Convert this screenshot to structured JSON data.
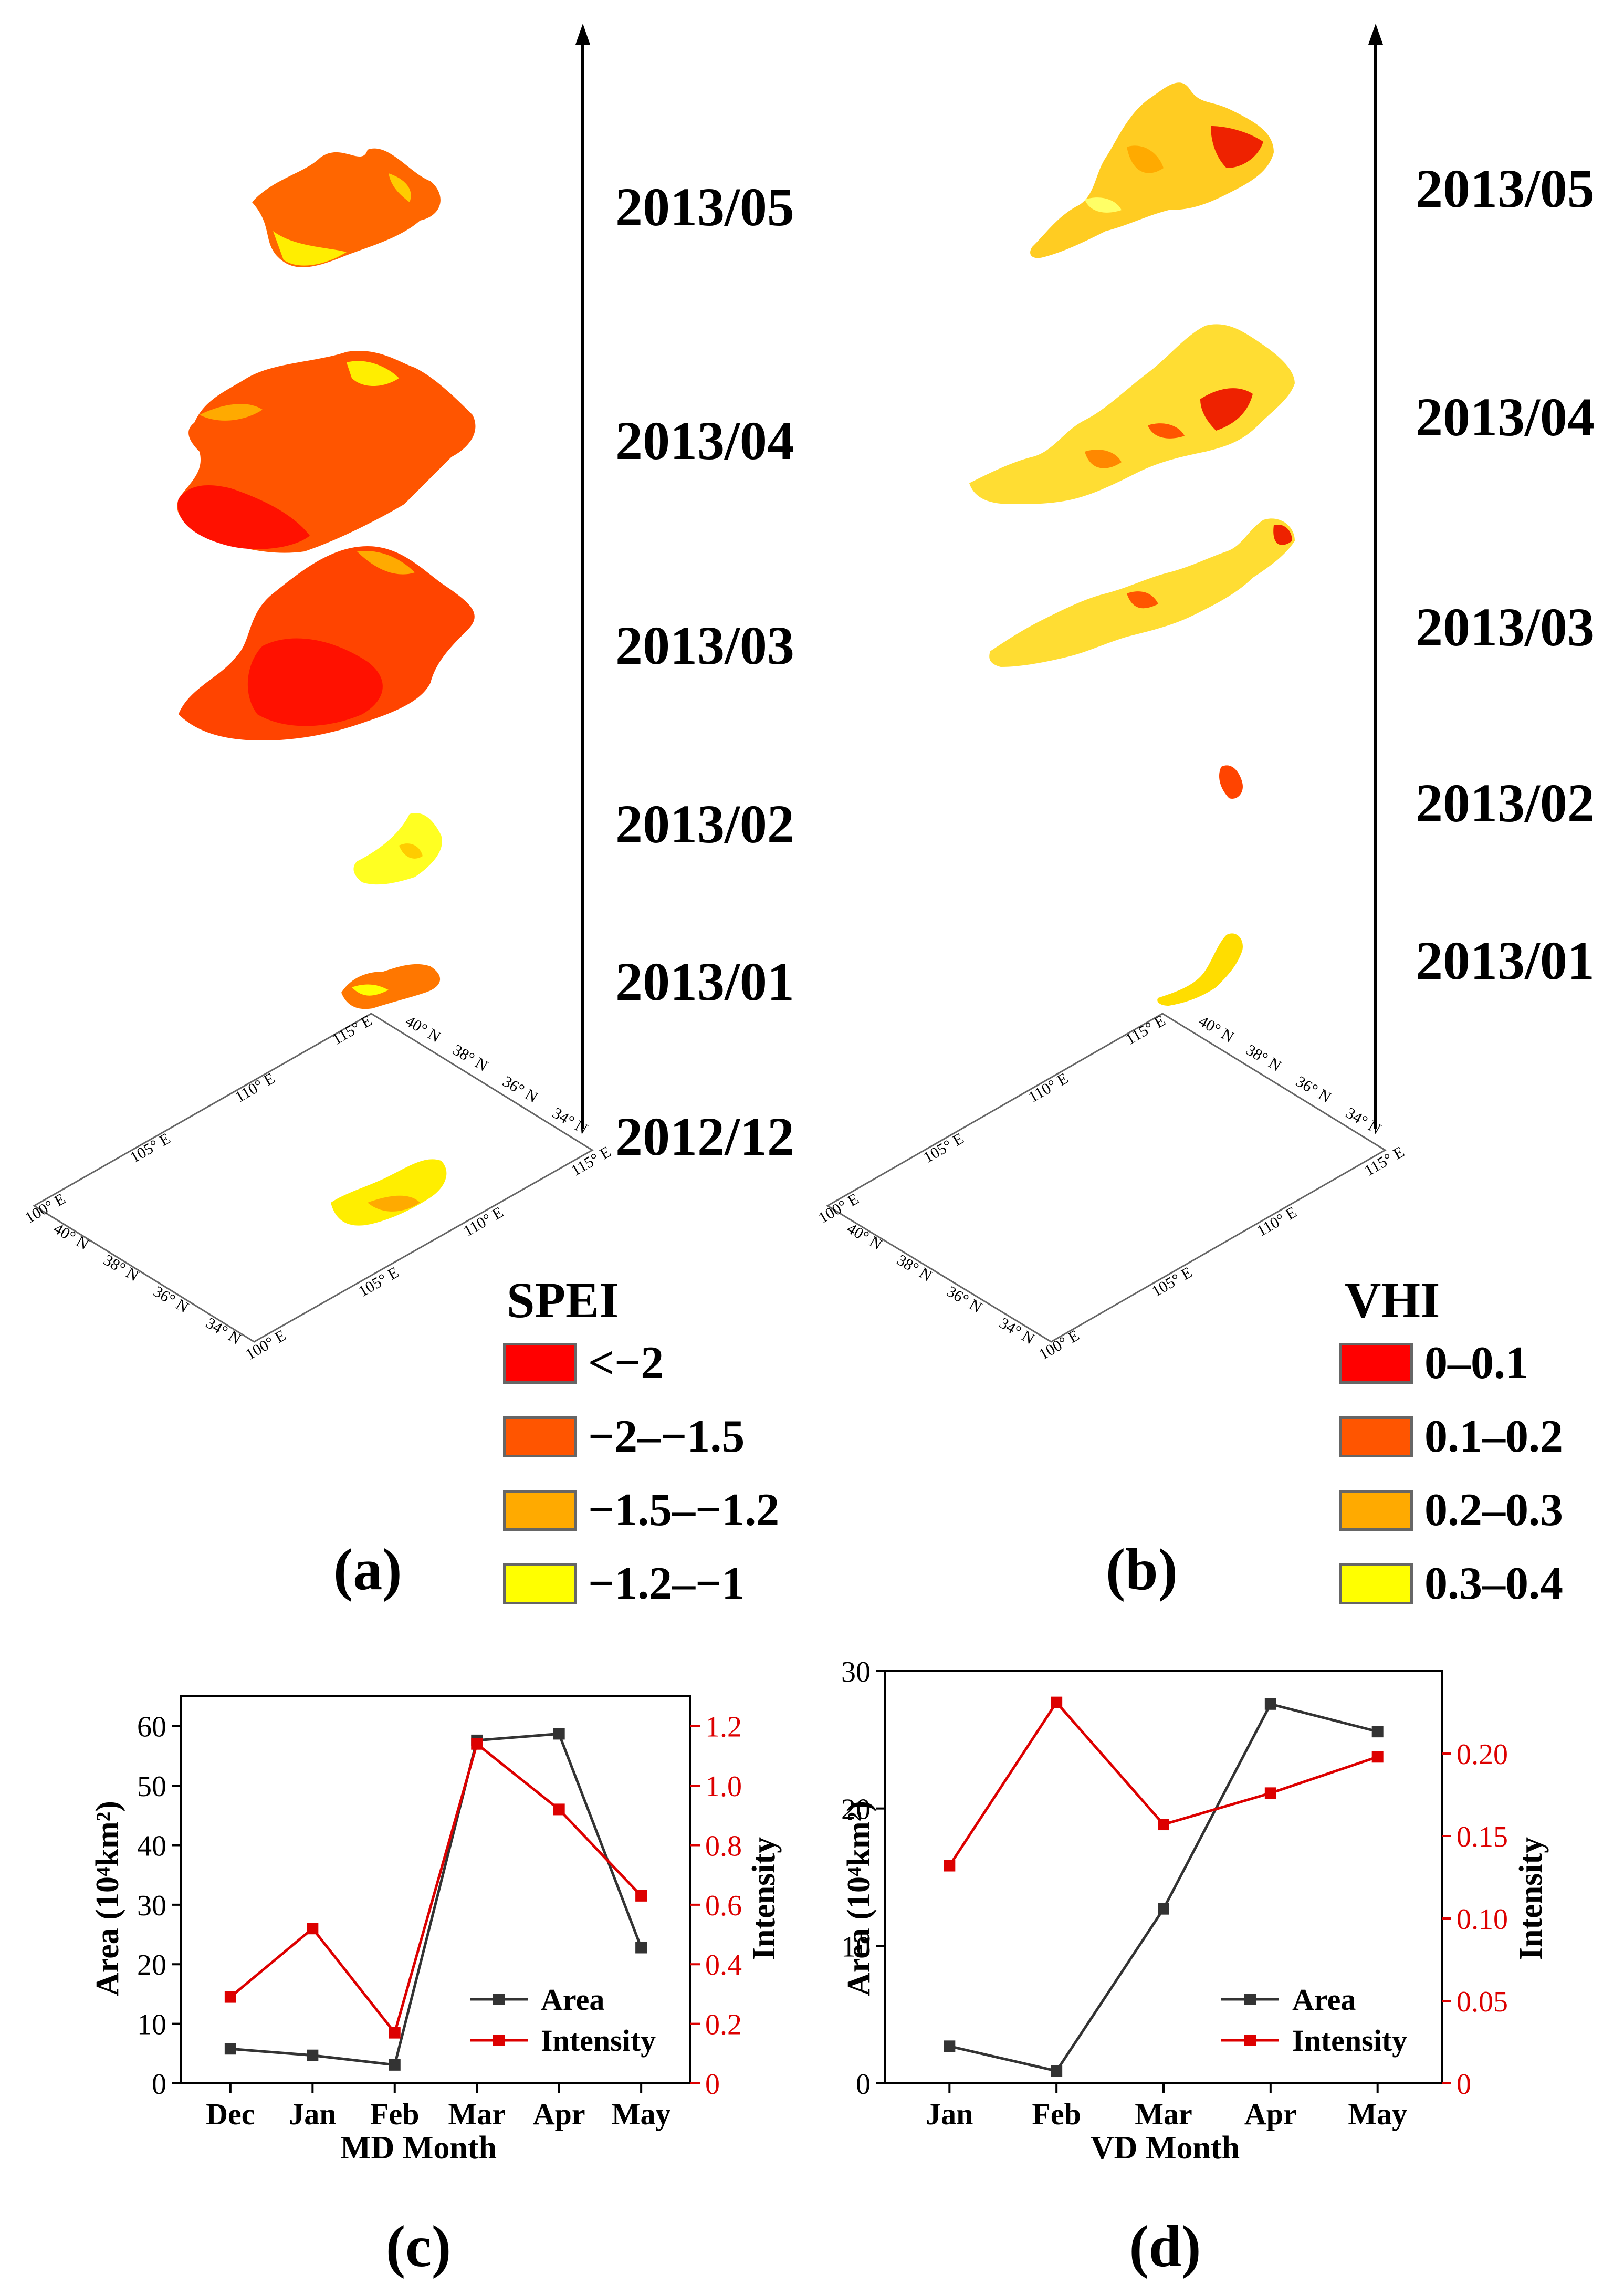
{
  "maps": [
    {
      "id": "a",
      "panel_label": "(a)",
      "dates": [
        "2013/05",
        "2013/04",
        "2013/03",
        "2013/02",
        "2013/01",
        "2012/12"
      ],
      "axis_labels": [
        "100° E",
        "105° E",
        "110° E",
        "115° E",
        "115° E",
        "110° E",
        "105° E",
        "100° E",
        "40° N",
        "38° N",
        "36° N",
        "34° N",
        "40° N",
        "38° N",
        "36° N",
        "34° N"
      ],
      "legend": {
        "title": "SPEI",
        "items": [
          {
            "label": "<−2",
            "color": "#ff0000"
          },
          {
            "label": "−2–−1.5",
            "color": "#ff5500"
          },
          {
            "label": "−1.5–−1.2",
            "color": "#ffaa00"
          },
          {
            "label": "−1.2–−1",
            "color": "#ffff00"
          }
        ]
      }
    },
    {
      "id": "b",
      "panel_label": "(b)",
      "dates": [
        "2013/05",
        "2013/04",
        "2013/03",
        "2013/02",
        "2013/01"
      ],
      "axis_labels": [
        "100° E",
        "105° E",
        "110° E",
        "115° E",
        "115° E",
        "110° E",
        "105° E",
        "100° E",
        "40° N",
        "38° N",
        "36° N",
        "34° N",
        "40° N",
        "38° N",
        "36° N",
        "34° N"
      ],
      "legend": {
        "title": "VHI",
        "items": [
          {
            "label": "0–0.1",
            "color": "#ff0000"
          },
          {
            "label": "0.1–0.2",
            "color": "#ff5500"
          },
          {
            "label": "0.2–0.3",
            "color": "#ffaa00"
          },
          {
            "label": "0.3–0.4",
            "color": "#ffff00"
          }
        ]
      }
    }
  ],
  "chart_data": [
    {
      "panel_label": "(c)",
      "type": "line",
      "xlabel": "MD Month",
      "ylabel_left": "Area (10⁴km²)",
      "ylabel_right": "Intensity",
      "categories": [
        "Dec",
        "Jan",
        "Feb",
        "Mar",
        "Apr",
        "May"
      ],
      "ylim_left": [
        0,
        65
      ],
      "ylim_right": [
        0,
        1.3
      ],
      "yticks_left": [
        "0",
        "10",
        "20",
        "30",
        "40",
        "50",
        "60"
      ],
      "yticks_right": [
        "0",
        "0.2",
        "0.4",
        "0.6",
        "0.8",
        "1.0",
        "1.2"
      ],
      "series": [
        {
          "name": "Area",
          "axis": "left",
          "color": "#333333",
          "values": [
            5.8,
            4.7,
            3.1,
            57.6,
            58.7,
            22.8
          ]
        },
        {
          "name": "Intensity",
          "axis": "right",
          "color": "#dd0000",
          "values": [
            0.29,
            0.52,
            0.17,
            1.14,
            0.92,
            0.63
          ]
        }
      ],
      "legend_position": "bottom-right"
    },
    {
      "panel_label": "(d)",
      "type": "line",
      "xlabel": "VD Month",
      "ylabel_left": "Area (10⁴km²)",
      "ylabel_right": "Intensity",
      "categories": [
        "Jan",
        "Feb",
        "Mar",
        "Apr",
        "May"
      ],
      "ylim_left": [
        0,
        30
      ],
      "ylim_right": [
        0,
        0.25
      ],
      "yticks_left": [
        "0",
        "10",
        "20",
        "30"
      ],
      "yticks_right": [
        "0",
        "0.05",
        "0.10",
        "0.15",
        "0.20"
      ],
      "series": [
        {
          "name": "Area",
          "axis": "left",
          "color": "#333333",
          "values": [
            2.7,
            0.9,
            12.7,
            27.6,
            25.6
          ]
        },
        {
          "name": "Intensity",
          "axis": "right",
          "color": "#dd0000",
          "values": [
            0.132,
            0.231,
            0.157,
            0.176,
            0.198
          ]
        }
      ],
      "legend_position": "bottom-right"
    }
  ]
}
